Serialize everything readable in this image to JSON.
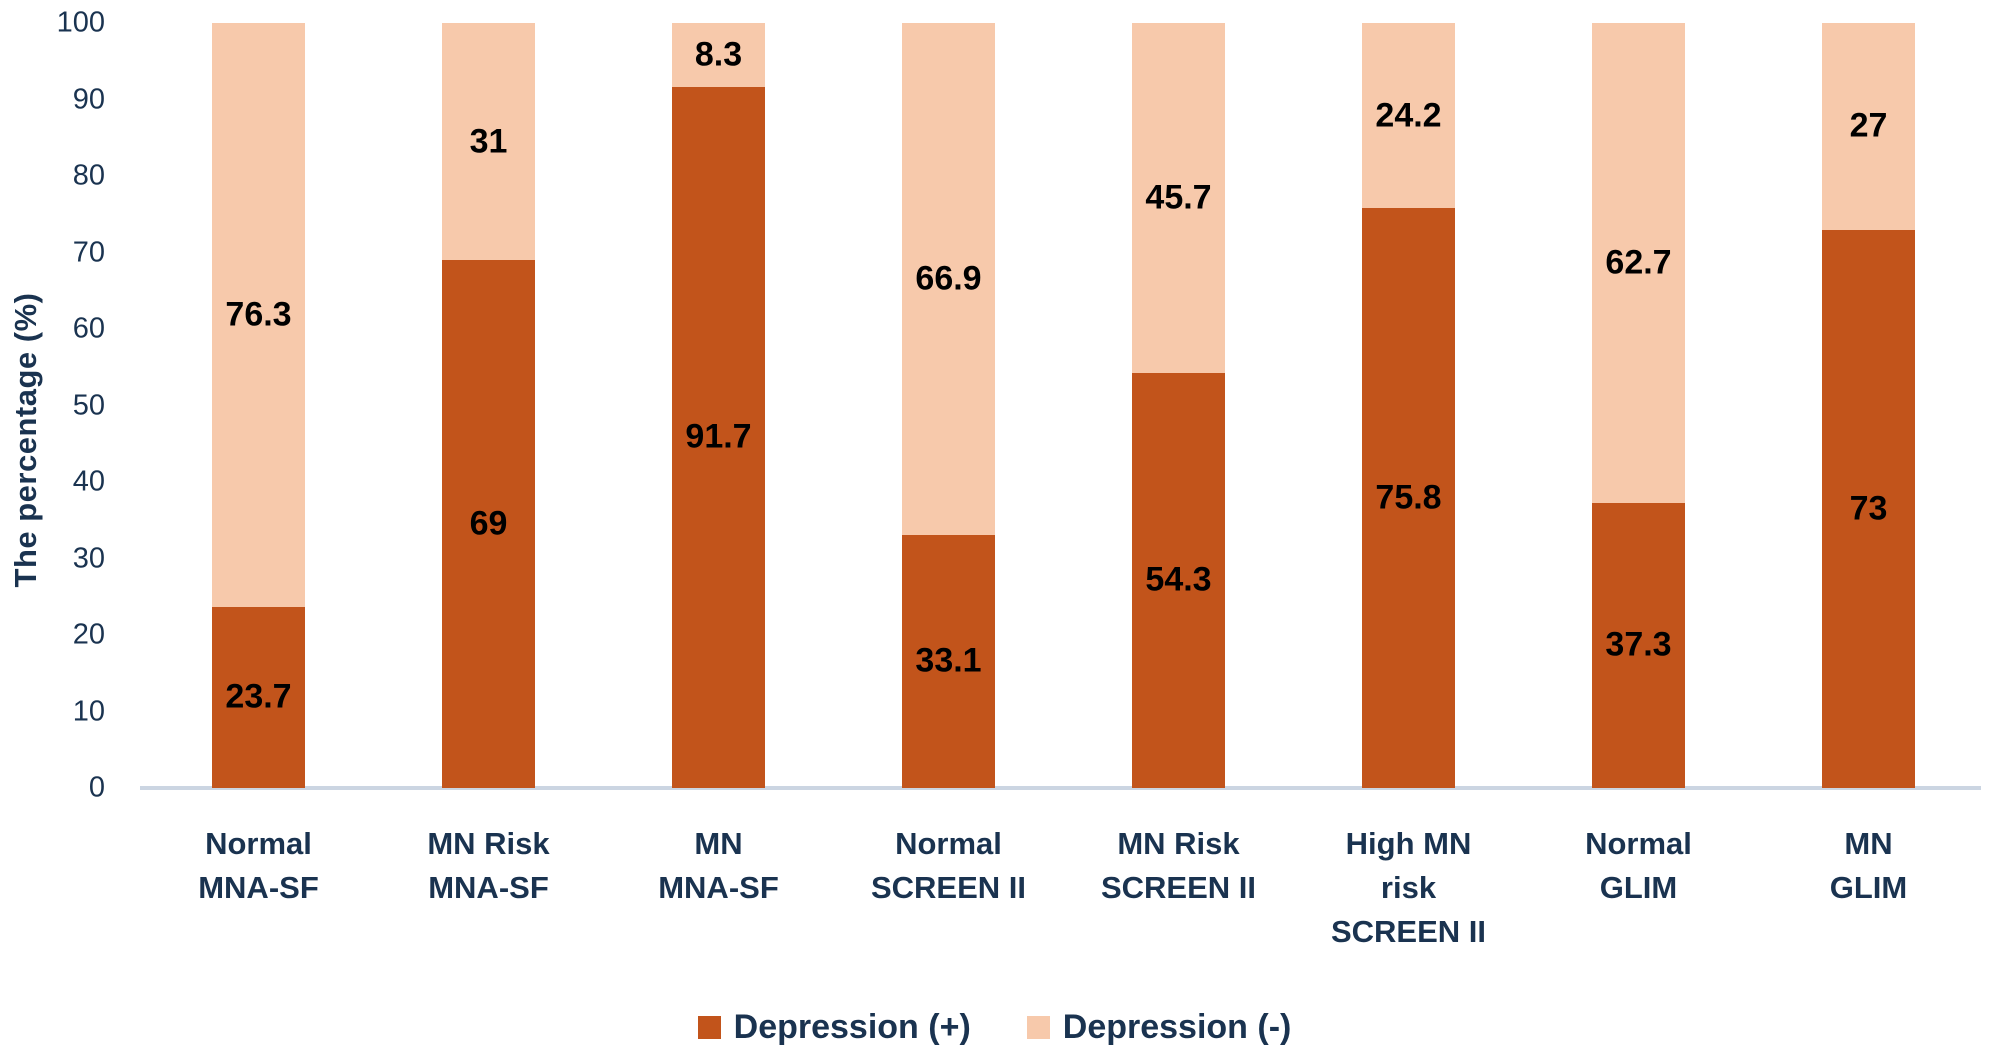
{
  "chart_data": {
    "type": "bar",
    "stacked": true,
    "title": "",
    "xlabel": "",
    "ylabel": "The percentage (%)",
    "ylim": [
      0,
      100
    ],
    "yticks": [
      0,
      10,
      20,
      30,
      40,
      50,
      60,
      70,
      80,
      90,
      100
    ],
    "grid": false,
    "legend_position": "bottom",
    "categories": [
      "Normal\nMNA-SF",
      "MN Risk\nMNA-SF",
      "MN\nMNA-SF",
      "Normal\nSCREEN II",
      "MN Risk\nSCREEN II",
      "High MN\nrisk\nSCREEN II",
      "Normal\nGLIM",
      "MN\nGLIM"
    ],
    "series": [
      {
        "name": "Depression (+)",
        "color": "#C2541B",
        "values": [
          23.7,
          69,
          91.7,
          33.1,
          54.3,
          75.8,
          37.3,
          73
        ]
      },
      {
        "name": "Depression (-)",
        "color": "#F7C9AB",
        "values": [
          76.3,
          31,
          8.3,
          66.9,
          45.7,
          24.2,
          62.7,
          27
        ]
      }
    ]
  },
  "colors": {
    "axis_text": "#1A3350",
    "value_label": "#000000",
    "axis_line": "#CBD5E2",
    "background": "#FFFFFF"
  }
}
